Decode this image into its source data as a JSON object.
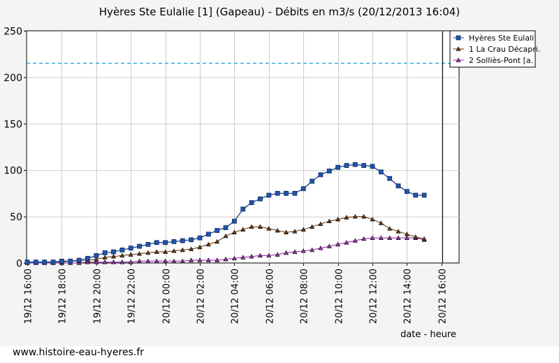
{
  "chart_data": {
    "type": "line",
    "title": "Hyères Ste Eulalie [1] (Gapeau) - Débits en m3/s (20/12/2013 16:04)",
    "xlabel": "date - heure",
    "ylabel": "",
    "ylim": [
      0,
      250
    ],
    "yticks": [
      0,
      50,
      100,
      150,
      200,
      250
    ],
    "x_tick_labels": [
      "19/12 16:00",
      "19/12 18:00",
      "19/12 20:00",
      "19/12 22:00",
      "20/12 00:00",
      "20/12 02:00",
      "20/12 04:00",
      "20/12 06:00",
      "20/12 08:00",
      "20/12 10:00",
      "20/12 12:00",
      "20/12 14:00",
      "20/12 16:00"
    ],
    "xlim_hours": [
      0,
      24
    ],
    "grid": true,
    "legend_position": "top-right",
    "threshold": 215,
    "current_time_hour": 24.07,
    "series": [
      {
        "name": "Hyères Ste Eulali",
        "color": "#2255aa",
        "marker": "square",
        "x_hours": [
          0,
          0.5,
          1,
          1.5,
          2,
          2.5,
          3,
          3.5,
          4,
          4.5,
          5,
          5.5,
          6,
          6.5,
          7,
          7.5,
          8,
          8.5,
          9,
          9.5,
          10,
          10.5,
          11,
          11.5,
          12,
          12.5,
          13,
          13.5,
          14,
          14.5,
          15,
          15.5,
          16,
          16.5,
          17,
          17.5,
          18,
          18.5,
          19,
          19.5,
          20,
          20.5,
          21,
          21.5,
          22,
          22.5,
          23
        ],
        "values": [
          1,
          1,
          1,
          1,
          2,
          2,
          3,
          5,
          8,
          11,
          12,
          14,
          16,
          18,
          20,
          22,
          22,
          23,
          24,
          25,
          27,
          31,
          35,
          38,
          45,
          58,
          65,
          69,
          73,
          75,
          75,
          75,
          80,
          88,
          95,
          99,
          103,
          105,
          106,
          105,
          104,
          98,
          91,
          83,
          77,
          73,
          73
        ]
      },
      {
        "name": "1 La Crau Décapri.",
        "color": "#6b3a10",
        "marker": "triangle",
        "x_hours": [
          0,
          0.5,
          1,
          1.5,
          2,
          2.5,
          3,
          3.5,
          4,
          4.5,
          5,
          5.5,
          6,
          6.5,
          7,
          7.5,
          8,
          8.5,
          9,
          9.5,
          10,
          10.5,
          11,
          11.5,
          12,
          12.5,
          13,
          13.5,
          14,
          14.5,
          15,
          15.5,
          16,
          16.5,
          17,
          17.5,
          18,
          18.5,
          19,
          19.5,
          20,
          20.5,
          21,
          21.5,
          22,
          22.5,
          23
        ],
        "values": [
          1,
          1,
          1,
          1,
          1,
          2,
          2,
          3,
          4,
          6,
          7,
          8,
          9,
          10,
          11,
          12,
          12,
          13,
          14,
          15,
          17,
          20,
          23,
          29,
          33,
          36,
          39,
          39,
          37,
          35,
          33,
          34,
          36,
          39,
          42,
          45,
          47,
          49,
          50,
          50,
          47,
          43,
          37,
          34,
          31,
          28,
          26
        ]
      },
      {
        "name": "2 Solliès-Pont [a.",
        "color": "#9933aa",
        "marker": "triangle",
        "x_hours": [
          0,
          0.5,
          1,
          1.5,
          2,
          2.5,
          3,
          3.5,
          4,
          4.5,
          5,
          5.5,
          6,
          6.5,
          7,
          7.5,
          8,
          8.5,
          9,
          9.5,
          10,
          10.5,
          11,
          11.5,
          12,
          12.5,
          13,
          13.5,
          14,
          14.5,
          15,
          15.5,
          16,
          16.5,
          17,
          17.5,
          18,
          18.5,
          19,
          19.5,
          20,
          20.5,
          21,
          21.5,
          22,
          22.5,
          23
        ],
        "values": [
          0,
          0,
          0,
          0,
          0,
          0,
          0,
          1,
          1,
          1,
          1,
          1,
          1,
          2,
          2,
          2,
          2,
          2,
          2,
          3,
          3,
          3,
          3,
          4,
          5,
          6,
          7,
          8,
          8,
          9,
          11,
          12,
          13,
          14,
          16,
          18,
          20,
          22,
          24,
          26,
          27,
          27,
          27,
          27,
          27,
          27,
          25
        ]
      }
    ]
  },
  "footer": {
    "url": "www.histoire-eau-hyeres.fr"
  }
}
